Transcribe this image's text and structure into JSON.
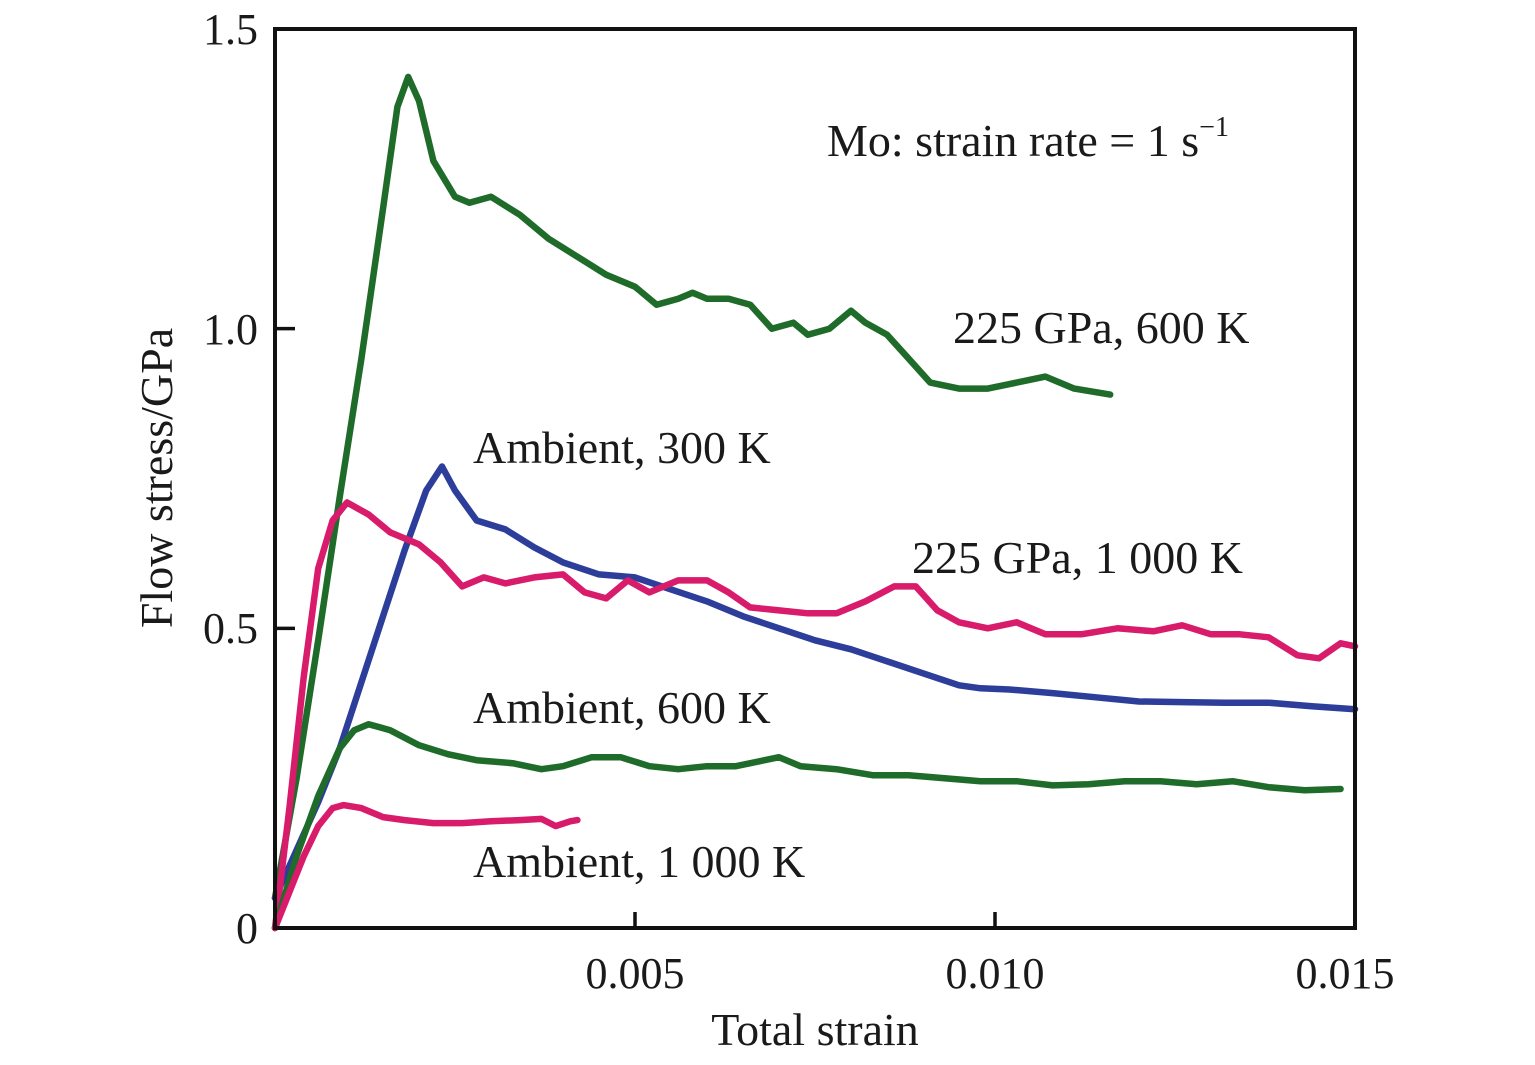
{
  "chart_data": {
    "type": "line",
    "title": "",
    "annotation_main": "Mo: strain rate = 1 s",
    "annotation_main_sup": "−1",
    "xlabel": "Total strain",
    "ylabel": "Flow stress/GPa",
    "xlim": [
      0,
      0.015
    ],
    "ylim": [
      0,
      1.5
    ],
    "x_ticks": [
      0.005,
      0.01,
      0.015
    ],
    "x_tick_labels": [
      "0.005",
      "0.010",
      "0.015"
    ],
    "y_ticks": [
      0,
      0.5,
      1.0,
      1.5
    ],
    "y_tick_labels": [
      "0",
      "0.5",
      "1.0",
      "1.5"
    ],
    "grid": false,
    "legend": "none (inline labels)",
    "series": [
      {
        "name": "225 GPa, 600 K",
        "color": "#1f6b2a",
        "label_anchor": [
          0.0131,
          1.0
        ],
        "x": [
          0,
          0.0003,
          0.0006,
          0.0009,
          0.0012,
          0.0015,
          0.0017,
          0.00185,
          0.002,
          0.0022,
          0.0025,
          0.0027,
          0.003,
          0.0034,
          0.0038,
          0.0042,
          0.0046,
          0.005,
          0.0053,
          0.0056,
          0.0058,
          0.006,
          0.0063,
          0.0066,
          0.0069,
          0.0072,
          0.0074,
          0.0077,
          0.008,
          0.0082,
          0.0085,
          0.0088,
          0.0091,
          0.0095,
          0.0099,
          0.0103,
          0.0107,
          0.0111,
          0.0116
        ],
        "y": [
          0.05,
          0.25,
          0.48,
          0.72,
          0.95,
          1.2,
          1.37,
          1.42,
          1.38,
          1.28,
          1.22,
          1.21,
          1.22,
          1.19,
          1.15,
          1.12,
          1.09,
          1.07,
          1.04,
          1.05,
          1.06,
          1.05,
          1.05,
          1.04,
          1.0,
          1.01,
          0.99,
          1.0,
          1.03,
          1.01,
          0.99,
          0.95,
          0.91,
          0.9,
          0.9,
          0.91,
          0.92,
          0.9,
          0.89
        ]
      },
      {
        "name": "Ambient, 300 K",
        "color": "#2d3e9a",
        "label_anchor": [
          0.00275,
          0.8
        ],
        "x": [
          0,
          0.0003,
          0.0006,
          0.0009,
          0.0012,
          0.0015,
          0.0018,
          0.0021,
          0.00232,
          0.0025,
          0.0028,
          0.0032,
          0.0036,
          0.004,
          0.0045,
          0.005,
          0.0055,
          0.006,
          0.0065,
          0.007,
          0.0075,
          0.008,
          0.0085,
          0.009,
          0.0095,
          0.0098,
          0.0102,
          0.0108,
          0.0114,
          0.012,
          0.0126,
          0.0132,
          0.0138,
          0.0144,
          0.015
        ],
        "y": [
          0.05,
          0.13,
          0.21,
          0.3,
          0.41,
          0.52,
          0.63,
          0.73,
          0.77,
          0.73,
          0.68,
          0.665,
          0.635,
          0.61,
          0.59,
          0.585,
          0.565,
          0.545,
          0.52,
          0.5,
          0.48,
          0.465,
          0.445,
          0.425,
          0.405,
          0.4,
          0.398,
          0.392,
          0.385,
          0.378,
          0.377,
          0.376,
          0.376,
          0.37,
          0.365
        ]
      },
      {
        "name": "225 GPa, 1 000 K",
        "color": "#d81b6a",
        "label_anchor": [
          0.0124,
          0.58
        ],
        "x": [
          0,
          0.0002,
          0.0004,
          0.0006,
          0.0008,
          0.001,
          0.0013,
          0.0016,
          0.002,
          0.0023,
          0.0026,
          0.0029,
          0.0032,
          0.0036,
          0.004,
          0.0043,
          0.0046,
          0.0049,
          0.0052,
          0.0056,
          0.006,
          0.0063,
          0.0066,
          0.007,
          0.0074,
          0.0078,
          0.0082,
          0.0086,
          0.0089,
          0.0092,
          0.0095,
          0.0099,
          0.0103,
          0.0107,
          0.0112,
          0.0117,
          0.0122,
          0.0126,
          0.013,
          0.0134,
          0.0138,
          0.0142,
          0.0145,
          0.0148,
          0.015
        ],
        "y": [
          0.0,
          0.2,
          0.42,
          0.6,
          0.68,
          0.71,
          0.69,
          0.66,
          0.64,
          0.61,
          0.57,
          0.585,
          0.575,
          0.585,
          0.59,
          0.56,
          0.55,
          0.58,
          0.56,
          0.58,
          0.58,
          0.56,
          0.535,
          0.53,
          0.525,
          0.525,
          0.545,
          0.57,
          0.57,
          0.53,
          0.51,
          0.5,
          0.51,
          0.49,
          0.49,
          0.5,
          0.495,
          0.505,
          0.49,
          0.49,
          0.485,
          0.455,
          0.45,
          0.475,
          0.47
        ]
      },
      {
        "name": "Ambient, 600 K",
        "color": "#1f6b2a",
        "label_anchor": [
          0.00275,
          0.34
        ],
        "x": [
          0,
          0.0003,
          0.0006,
          0.0009,
          0.0011,
          0.0013,
          0.0016,
          0.002,
          0.0024,
          0.0028,
          0.0033,
          0.0037,
          0.004,
          0.0044,
          0.0048,
          0.0052,
          0.0056,
          0.006,
          0.0064,
          0.0068,
          0.007,
          0.0073,
          0.0078,
          0.0083,
          0.0088,
          0.0093,
          0.0098,
          0.0103,
          0.0108,
          0.0113,
          0.0118,
          0.0123,
          0.0128,
          0.0133,
          0.0138,
          0.0143,
          0.0148
        ],
        "y": [
          0.0,
          0.12,
          0.22,
          0.3,
          0.33,
          0.34,
          0.33,
          0.305,
          0.29,
          0.28,
          0.275,
          0.265,
          0.27,
          0.285,
          0.285,
          0.27,
          0.265,
          0.27,
          0.27,
          0.28,
          0.285,
          0.27,
          0.265,
          0.255,
          0.255,
          0.25,
          0.245,
          0.245,
          0.238,
          0.24,
          0.245,
          0.245,
          0.24,
          0.245,
          0.235,
          0.23,
          0.232
        ]
      },
      {
        "name": "Ambient, 1 000 K",
        "color": "#d81b6a",
        "label_anchor": [
          0.00275,
          0.08
        ],
        "x": [
          0,
          0.0002,
          0.0004,
          0.0006,
          0.0008,
          0.00095,
          0.0012,
          0.0015,
          0.0018,
          0.0022,
          0.0026,
          0.003,
          0.0034,
          0.0037,
          0.0039,
          0.0041,
          0.0042
        ],
        "y": [
          0.0,
          0.06,
          0.12,
          0.17,
          0.2,
          0.205,
          0.2,
          0.185,
          0.18,
          0.175,
          0.175,
          0.178,
          0.18,
          0.182,
          0.17,
          0.178,
          0.18
        ]
      }
    ]
  }
}
